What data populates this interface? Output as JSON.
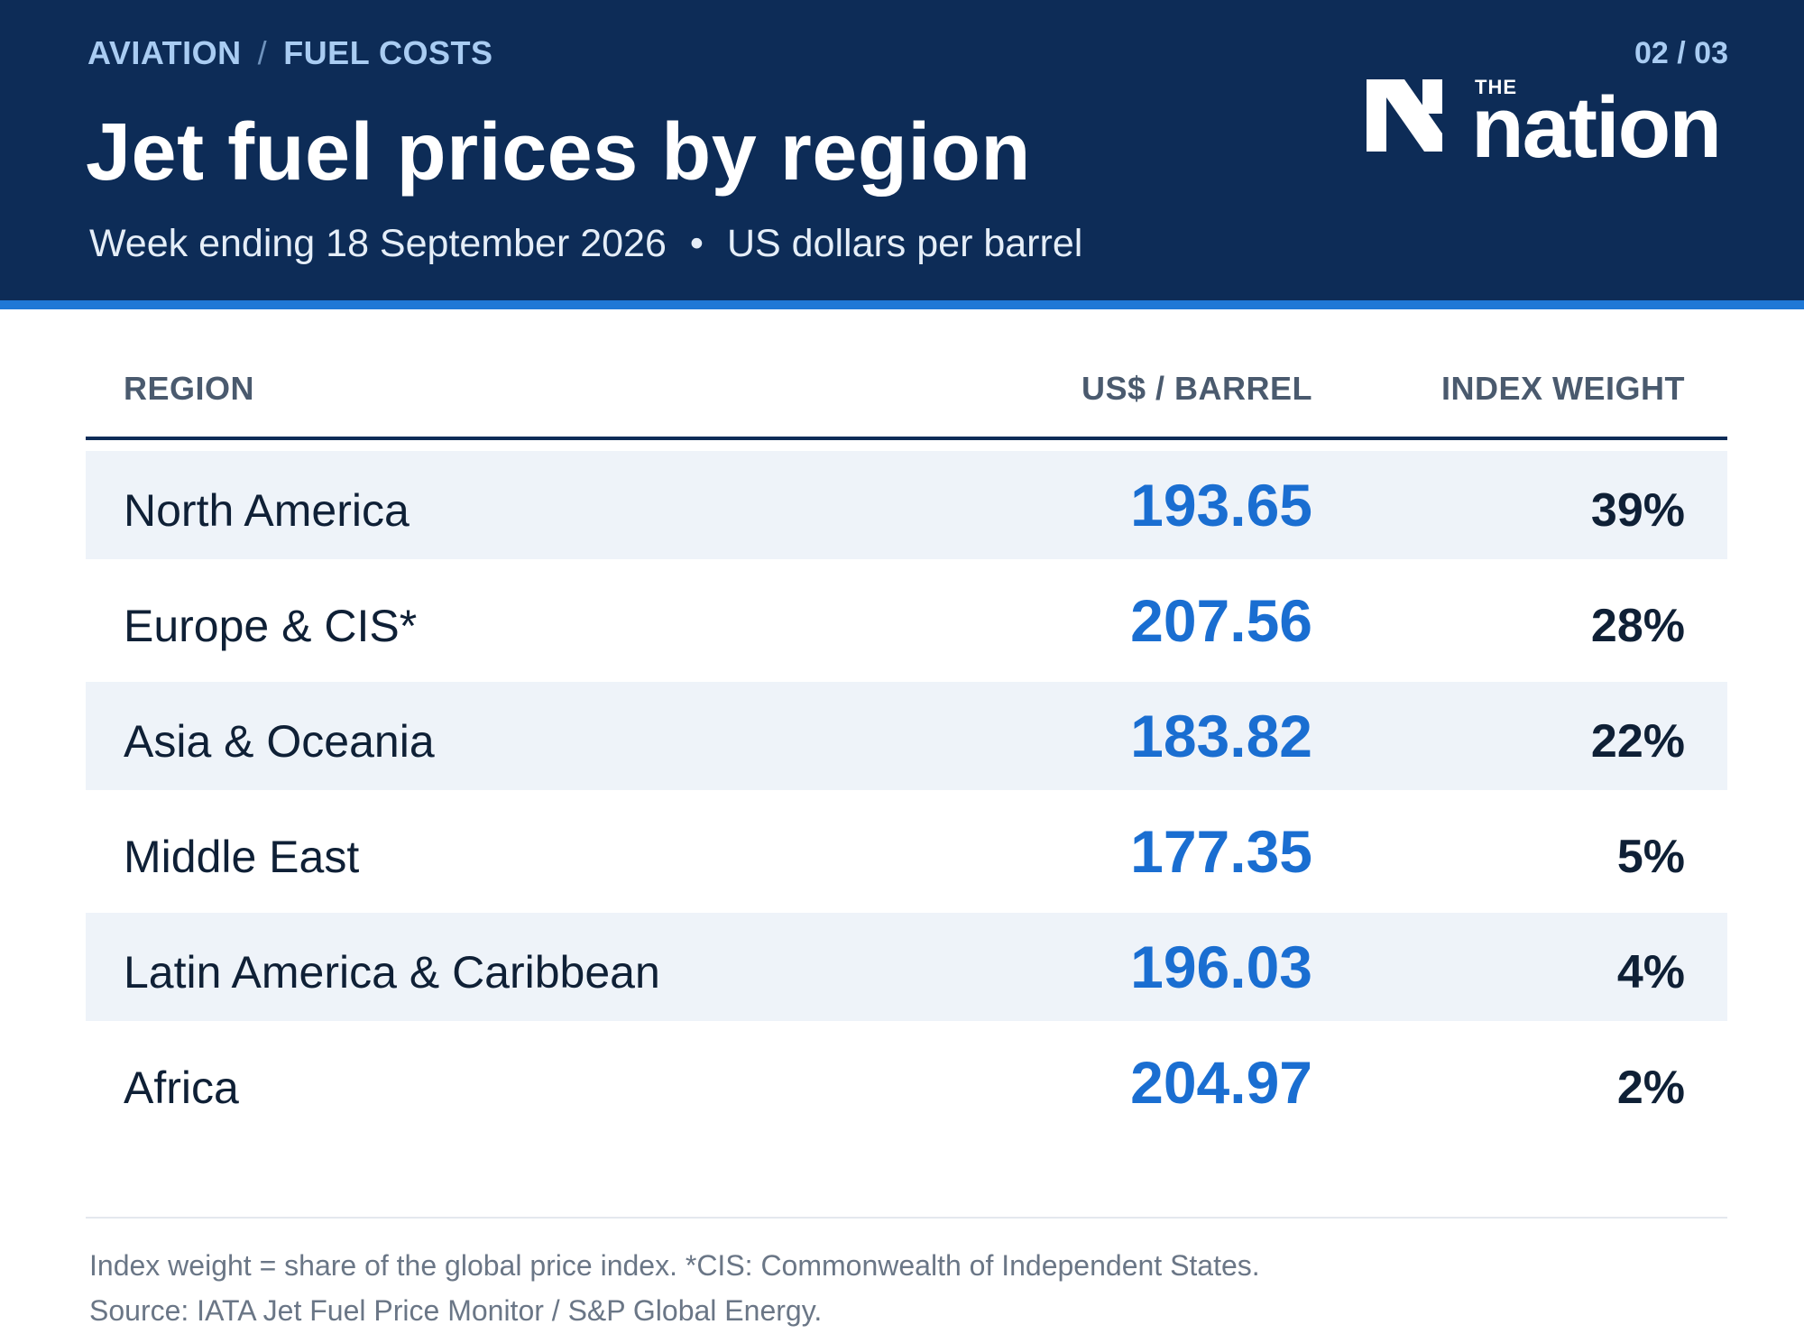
{
  "header": {
    "breadcrumb": [
      "AVIATION",
      "FUEL COSTS"
    ],
    "breadcrumb_sep": "/",
    "title": "Jet fuel prices by region",
    "subtitle_period": "Week ending 18 September 2026",
    "subtitle_sep": "•",
    "subtitle_unit": "US dollars per barrel",
    "page_counter": "02 / 03",
    "logo_small": "THE",
    "logo_word": "nation",
    "logo_icon": "n-mark-icon"
  },
  "colors": {
    "header_bg": "#0d2c57",
    "accent_rule": "#1f78d6",
    "price_text": "#1a6ed1",
    "row_shade": "#eef3f9"
  },
  "chart_data": {
    "type": "table",
    "title": "Jet fuel prices by region",
    "subtitle": "Week ending 18 September 2026 • US dollars per barrel",
    "columns": [
      "REGION",
      "US$ / BARREL",
      "INDEX WEIGHT"
    ],
    "rows": [
      {
        "region": "North America",
        "price": "193.65",
        "weight": "39%"
      },
      {
        "region": "Europe & CIS*",
        "price": "207.56",
        "weight": "28%"
      },
      {
        "region": "Asia & Oceania",
        "price": "183.82",
        "weight": "22%"
      },
      {
        "region": "Middle East",
        "price": "177.35",
        "weight": "5%"
      },
      {
        "region": "Latin America & Caribbean",
        "price": "196.03",
        "weight": "4%"
      },
      {
        "region": "Africa",
        "price": "204.97",
        "weight": "2%"
      }
    ]
  },
  "footer": {
    "note": "Index weight = share of the global price index.  *CIS: Commonwealth of Independent States.",
    "source": "Source: IATA Jet Fuel Price Monitor / S&P Global Energy."
  }
}
